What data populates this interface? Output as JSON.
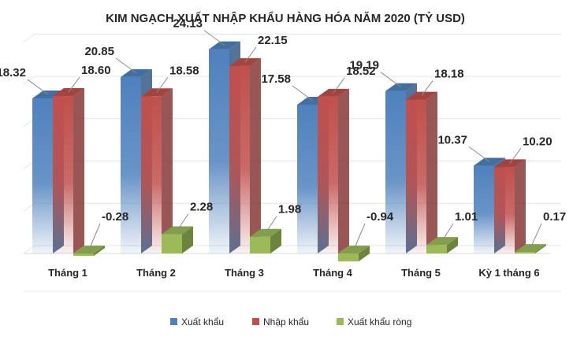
{
  "chart_data": {
    "type": "bar",
    "title": "KIM NGẠCH XUẤT NHẬP KHẨU HÀNG HÓA NĂM 2020 (TỶ USD)",
    "categories": [
      "Tháng 1",
      "Tháng 2",
      "Tháng 3",
      "Tháng 4",
      "Tháng 5",
      "Kỳ 1 tháng 6"
    ],
    "series": [
      {
        "name": "Xuất khẩu",
        "color": "#4f81bd",
        "values": [
          18.32,
          20.85,
          24.13,
          17.58,
          19.19,
          10.37
        ],
        "labels": [
          "18.32",
          "20.85",
          "24.13",
          "17.58",
          "19.19",
          "10.37"
        ]
      },
      {
        "name": "Nhập khẩu",
        "color": "#c0504d",
        "values": [
          18.6,
          18.58,
          22.15,
          18.52,
          18.18,
          10.2
        ],
        "labels": [
          "18.60",
          "18.58",
          "22.15",
          "18.52",
          "18.18",
          "10.20"
        ]
      },
      {
        "name": "Xuất khẩu ròng",
        "color": "#9bbb59",
        "values": [
          -0.28,
          2.28,
          1.98,
          -0.94,
          1.01,
          0.17
        ],
        "labels": [
          "-0.28",
          "2.28",
          "1.98",
          "-0.94",
          "1.01",
          "0.17"
        ]
      }
    ],
    "ylim": [
      -2,
      28
    ],
    "grid": true,
    "legend": "bottom",
    "style": "3d-column"
  }
}
